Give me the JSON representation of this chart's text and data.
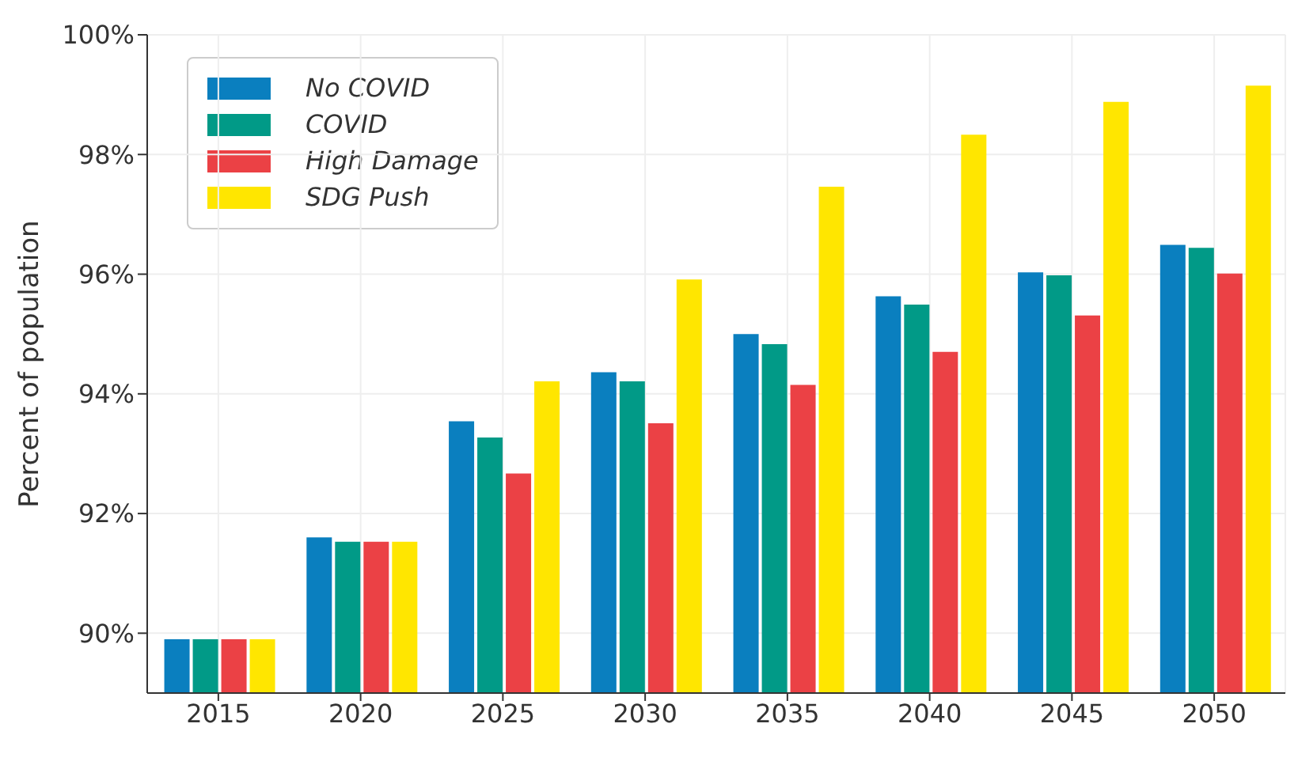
{
  "chart_data": {
    "type": "bar",
    "ylabel": "Percent of population",
    "categories": [
      "2015",
      "2020",
      "2025",
      "2030",
      "2035",
      "2040",
      "2045",
      "2050"
    ],
    "series": [
      {
        "name": "No COVID",
        "color": "#0a7fbf",
        "values": [
          89.9,
          91.6,
          93.54,
          94.36,
          95.0,
          95.63,
          96.03,
          96.49
        ]
      },
      {
        "name": "COVID",
        "color": "#019a87",
        "values": [
          89.9,
          91.53,
          93.27,
          94.21,
          94.83,
          95.49,
          95.98,
          96.44
        ]
      },
      {
        "name": "High Damage",
        "color": "#eb4145",
        "values": [
          89.9,
          91.53,
          92.67,
          93.51,
          94.15,
          94.7,
          95.31,
          96.01
        ]
      },
      {
        "name": "SDG Push",
        "color": "#ffe600",
        "values": [
          89.9,
          91.53,
          94.21,
          95.91,
          97.46,
          98.33,
          98.88,
          99.15
        ]
      }
    ],
    "ylim": [
      89,
      100
    ],
    "yticks": [
      {
        "value": 90,
        "label": "90%"
      },
      {
        "value": 92,
        "label": "92%"
      },
      {
        "value": 94,
        "label": "94%"
      },
      {
        "value": 96,
        "label": "96%"
      },
      {
        "value": 98,
        "label": "98%"
      },
      {
        "value": 100,
        "label": "100%"
      }
    ],
    "grid": true,
    "legend": "top left"
  }
}
